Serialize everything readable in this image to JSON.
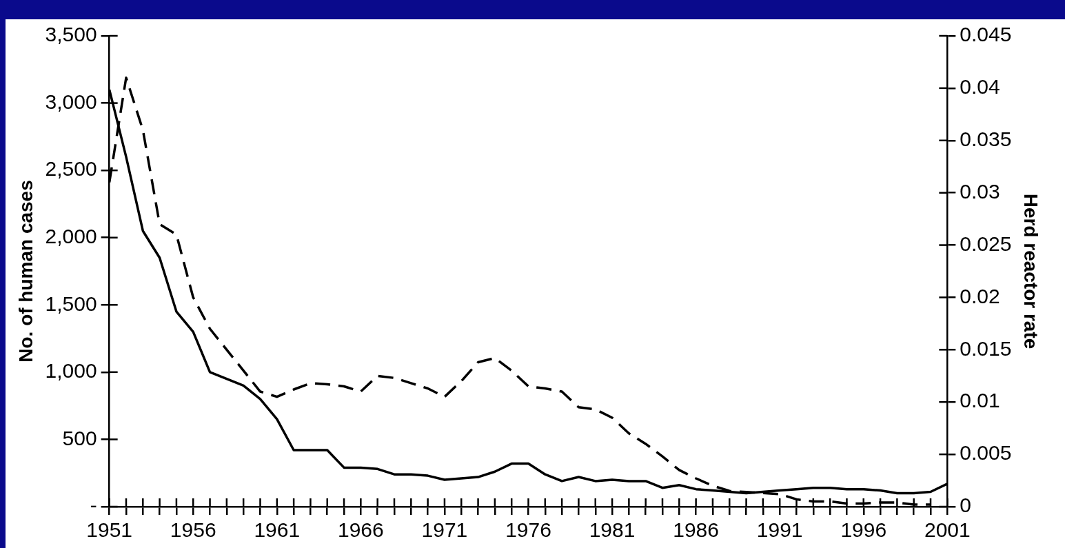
{
  "chart_data": {
    "type": "line",
    "ylabel": "No. of human cases",
    "y2label": "Herd reactor rate",
    "x": [
      1951,
      1952,
      1953,
      1954,
      1955,
      1956,
      1957,
      1958,
      1959,
      1960,
      1961,
      1962,
      1963,
      1964,
      1965,
      1966,
      1967,
      1968,
      1969,
      1970,
      1971,
      1972,
      1973,
      1974,
      1975,
      1976,
      1977,
      1978,
      1979,
      1980,
      1981,
      1982,
      1983,
      1984,
      1985,
      1986,
      1987,
      1988,
      1989,
      1990,
      1991,
      1992,
      1993,
      1994,
      1995,
      1996,
      1997,
      1998,
      1999,
      2000,
      2001
    ],
    "series": [
      {
        "color": "#000000",
        "line_style": "solid",
        "values": [
          3100,
          2600,
          2050,
          1850,
          1450,
          1300,
          1000,
          950,
          900,
          800,
          650,
          420,
          420,
          420,
          290,
          290,
          280,
          240,
          240,
          230,
          200,
          210,
          220,
          260,
          320,
          320,
          240,
          190,
          220,
          190,
          200,
          190,
          190,
          140,
          160,
          130,
          120,
          110,
          100,
          110,
          120,
          130,
          140,
          140,
          130,
          130,
          120,
          100,
          100,
          110,
          170
        ]
      },
      {
        "color": "#000000",
        "line_style": "dashed",
        "axis": "y2",
        "values": [
          0.031,
          0.041,
          0.036,
          0.027,
          0.026,
          0.02,
          0.017,
          0.015,
          0.013,
          0.011,
          0.0105,
          0.0112,
          0.0118,
          0.0117,
          0.0115,
          0.011,
          0.0125,
          0.0123,
          0.0118,
          0.0113,
          0.0105,
          0.012,
          0.0138,
          0.0142,
          0.013,
          0.0115,
          0.0113,
          0.011,
          0.0095,
          0.0093,
          0.0085,
          0.007,
          0.006,
          0.0048,
          0.0035,
          0.0027,
          0.002,
          0.0015,
          0.0014,
          0.0013,
          0.0012,
          0.0007,
          0.0005,
          0.0005,
          0.0003,
          0.0003,
          0.0004,
          0.0004,
          0.0002,
          0.0002,
          null
        ]
      }
    ],
    "xlim": [
      1951,
      2001
    ],
    "xticks": [
      1951,
      {
        "value": 1952,
        "label": null
      },
      {
        "value": 1953,
        "label": null
      },
      {
        "value": 1954,
        "label": null
      },
      {
        "value": 1955,
        "label": null
      },
      1956,
      {
        "value": 1957,
        "label": null
      },
      {
        "value": 1958,
        "label": null
      },
      {
        "value": 1959,
        "label": null
      },
      {
        "value": 1960,
        "label": null
      },
      1961,
      {
        "value": 1962,
        "label": null
      },
      {
        "value": 1963,
        "label": null
      },
      {
        "value": 1964,
        "label": null
      },
      {
        "value": 1965,
        "label": null
      },
      1966,
      {
        "value": 1967,
        "label": null
      },
      {
        "value": 1968,
        "label": null
      },
      {
        "value": 1969,
        "label": null
      },
      {
        "value": 1970,
        "label": null
      },
      1971,
      {
        "value": 1972,
        "label": null
      },
      {
        "value": 1973,
        "label": null
      },
      {
        "value": 1974,
        "label": null
      },
      {
        "value": 1975,
        "label": null
      },
      1976,
      {
        "value": 1977,
        "label": null
      },
      {
        "value": 1978,
        "label": null
      },
      {
        "value": 1979,
        "label": null
      },
      {
        "value": 1980,
        "label": null
      },
      1981,
      {
        "value": 1982,
        "label": null
      },
      {
        "value": 1983,
        "label": null
      },
      {
        "value": 1984,
        "label": null
      },
      {
        "value": 1985,
        "label": null
      },
      1986,
      {
        "value": 1987,
        "label": null
      },
      {
        "value": 1988,
        "label": null
      },
      {
        "value": 1989,
        "label": null
      },
      {
        "value": 1990,
        "label": null
      },
      1991,
      {
        "value": 1992,
        "label": null
      },
      {
        "value": 1993,
        "label": null
      },
      {
        "value": 1994,
        "label": null
      },
      {
        "value": 1995,
        "label": null
      },
      1996,
      {
        "value": 1997,
        "label": null
      },
      {
        "value": 1998,
        "label": null
      },
      {
        "value": 1999,
        "label": null
      },
      {
        "value": 2000,
        "label": null
      },
      2001
    ],
    "ylim": [
      0,
      3500
    ],
    "yticks": [
      {
        "value": 0,
        "label": "-"
      },
      500,
      {
        "value": 1000,
        "label": "1,000"
      },
      {
        "value": 1500,
        "label": "1,500"
      },
      {
        "value": 2000,
        "label": "2,000"
      },
      {
        "value": 2500,
        "label": "2,500"
      },
      {
        "value": 3000,
        "label": "3,000"
      },
      {
        "value": 3500,
        "label": "3,500"
      }
    ],
    "y2lim": [
      0,
      0.045
    ],
    "y2ticks": [
      0,
      0.005,
      0.01,
      0.015,
      0.02,
      0.025,
      0.03,
      0.035,
      0.04,
      0.045
    ],
    "grid": false,
    "legend": false,
    "marker": "none"
  }
}
